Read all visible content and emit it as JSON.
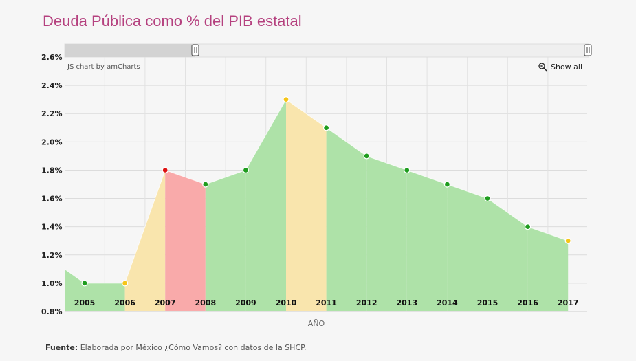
{
  "title": "Deuda Pública como % del PIB estatal",
  "credit": "JS chart by amCharts",
  "show_all": "Show all",
  "source": {
    "label": "Fuente:",
    "text": " Elaborada por México ¿Cómo Vamos? con datos de la SHCP."
  },
  "colors": {
    "green": "#aee2a8",
    "yellow": "#f9e5ad",
    "red": "#f9aaaa",
    "dot_green": "#1e9c1e",
    "dot_yellow": "#f5c518",
    "dot_red": "#d11"
  },
  "chart_data": {
    "type": "area",
    "xlabel": "AÑO",
    "ylim": [
      0.8,
      2.6
    ],
    "yticks": [
      "0.8%",
      "1.0%",
      "1.2%",
      "1.4%",
      "1.6%",
      "1.8%",
      "2.0%",
      "2.2%",
      "2.4%",
      "2.6%"
    ],
    "x": [
      "2005",
      "2006",
      "2007",
      "2008",
      "2009",
      "2010",
      "2011",
      "2012",
      "2013",
      "2014",
      "2015",
      "2016",
      "2017"
    ],
    "values": [
      1.0,
      1.0,
      1.8,
      1.7,
      1.8,
      2.3,
      2.1,
      1.9,
      1.8,
      1.7,
      1.6,
      1.4,
      1.3
    ],
    "point_status": [
      "green",
      "yellow",
      "red",
      "green",
      "green",
      "yellow",
      "green",
      "green",
      "green",
      "green",
      "green",
      "green",
      "yellow"
    ],
    "leading_value": 1.1,
    "grid": true
  }
}
